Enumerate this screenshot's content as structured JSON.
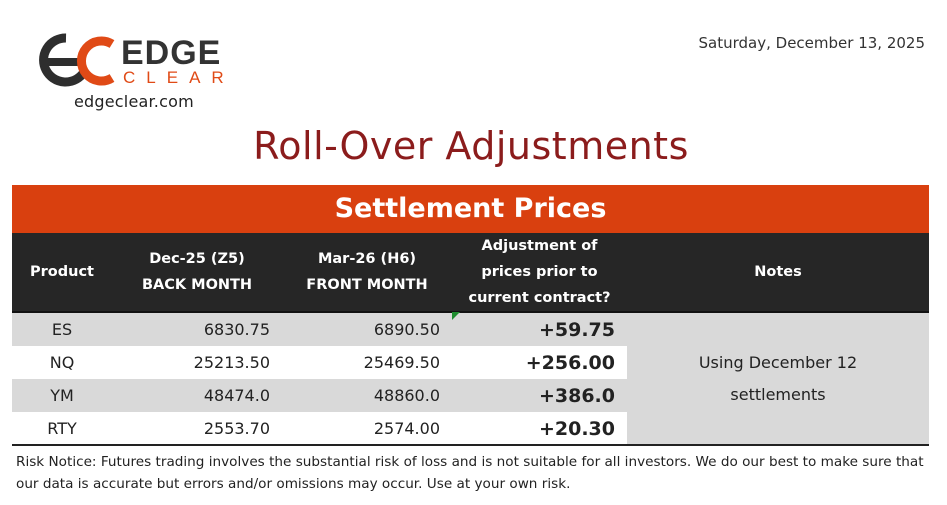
{
  "header": {
    "logo_word_1": "EDGE",
    "logo_word_2": "CLEAR",
    "website": "edgeclear.com",
    "date": "Saturday, December 13, 2025"
  },
  "title": "Roll-Over Adjustments",
  "banner": "Settlement Prices",
  "table": {
    "headers": {
      "product": "Product",
      "back_line1": "Dec-25 (Z5)",
      "back_line2": "BACK MONTH",
      "front_line1": "Mar-26 (H6)",
      "front_line2": "FRONT MONTH",
      "adj_line1": "Adjustment of",
      "adj_line2": "prices prior to",
      "adj_line3": "current contract?",
      "notes": "Notes"
    },
    "rows": [
      {
        "product": "ES",
        "back": "6830.75",
        "front": "6890.50",
        "adjustment": "+59.75"
      },
      {
        "product": "NQ",
        "back": "25213.50",
        "front": "25469.50",
        "adjustment": "+256.00"
      },
      {
        "product": "YM",
        "back": "48474.0",
        "front": "48860.0",
        "adjustment": "+386.0"
      },
      {
        "product": "RTY",
        "back": "2553.70",
        "front": "2574.00",
        "adjustment": "+20.30"
      }
    ],
    "notes_line1": "Using December 12",
    "notes_line2": "settlements"
  },
  "risk_notice": "Risk Notice: Futures trading involves the substantial risk of loss and is not suitable for all investors. We do our best to make sure that our data is accurate but errors and/or omissions may occur. Use at your own risk.",
  "colors": {
    "brand_orange": "#d9400f",
    "title_red": "#8b1c1c",
    "header_dark": "#262626",
    "row_shade": "#d9d9d9"
  }
}
